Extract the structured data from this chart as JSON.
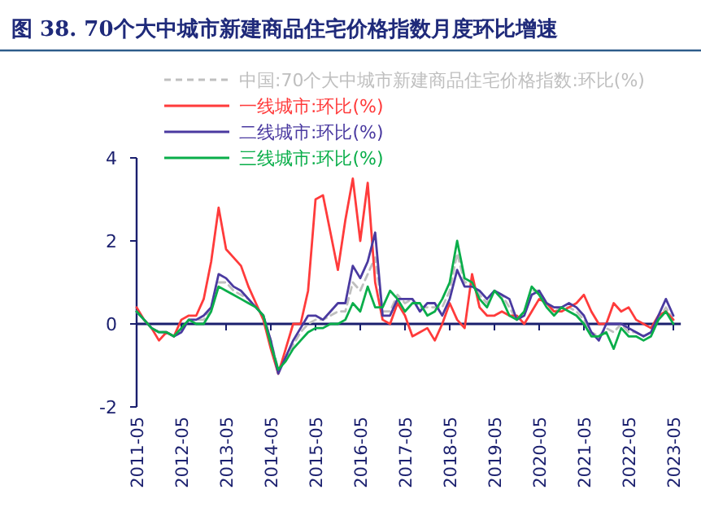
{
  "chart_data": {
    "type": "line",
    "title": "图  38. 70个大中城市新建商品住宅价格指数月度环比增速",
    "x": [
      "2011-05",
      "2011-07",
      "2011-09",
      "2011-11",
      "2012-01",
      "2012-03",
      "2012-05",
      "2012-07",
      "2012-09",
      "2012-11",
      "2013-01",
      "2013-03",
      "2013-05",
      "2013-07",
      "2013-09",
      "2013-11",
      "2014-01",
      "2014-03",
      "2014-05",
      "2014-07",
      "2014-09",
      "2014-11",
      "2015-01",
      "2015-03",
      "2015-05",
      "2015-07",
      "2015-09",
      "2015-11",
      "2016-01",
      "2016-03",
      "2016-05",
      "2016-07",
      "2016-09",
      "2016-11",
      "2017-01",
      "2017-03",
      "2017-05",
      "2017-07",
      "2017-09",
      "2017-11",
      "2018-01",
      "2018-03",
      "2018-05",
      "2018-07",
      "2018-09",
      "2018-11",
      "2019-01",
      "2019-03",
      "2019-05",
      "2019-07",
      "2019-09",
      "2019-11",
      "2020-01",
      "2020-03",
      "2020-05",
      "2020-07",
      "2020-09",
      "2020-11",
      "2021-01",
      "2021-03",
      "2021-05",
      "2021-07",
      "2021-09",
      "2021-11",
      "2022-01",
      "2022-03",
      "2022-05",
      "2022-07",
      "2022-09",
      "2022-11",
      "2023-01",
      "2023-03",
      "2023-05"
    ],
    "series": [
      {
        "name": "中国:70个大中城市新建商品住宅价格指数:环比(%)",
        "color": "#bfbfbf",
        "line_style": "dashed",
        "values": [
          0.3,
          0.1,
          -0.1,
          -0.2,
          -0.2,
          -0.3,
          -0.2,
          0.1,
          0.1,
          0.1,
          0.4,
          1.0,
          1.0,
          0.8,
          0.7,
          0.6,
          0.4,
          0.2,
          -0.4,
          -1.1,
          -0.8,
          -0.5,
          -0.2,
          0.0,
          0.1,
          0.1,
          0.2,
          0.3,
          0.3,
          1.0,
          0.8,
          1.2,
          1.6,
          0.3,
          0.3,
          0.7,
          0.5,
          0.6,
          0.4,
          0.4,
          0.4,
          0.4,
          0.8,
          1.7,
          1.0,
          1.0,
          0.7,
          0.5,
          0.8,
          0.7,
          0.4,
          0.1,
          0.3,
          0.8,
          0.8,
          0.5,
          0.3,
          0.4,
          0.4,
          0.3,
          0.1,
          -0.2,
          -0.3,
          -0.1,
          -0.2,
          0.0,
          -0.2,
          -0.2,
          -0.3,
          -0.2,
          0.1,
          0.4,
          0.1
        ]
      },
      {
        "name": "一线城市:环比(%)",
        "color": "#ff3b3b",
        "values": [
          0.4,
          0.1,
          -0.1,
          -0.4,
          -0.2,
          -0.3,
          0.1,
          0.2,
          0.2,
          0.6,
          1.5,
          2.8,
          1.8,
          1.6,
          1.4,
          0.9,
          0.5,
          0.1,
          -0.6,
          -1.2,
          -0.6,
          0.0,
          0.0,
          0.8,
          3.0,
          3.1,
          2.2,
          1.3,
          2.5,
          3.5,
          2.0,
          3.4,
          1.0,
          0.1,
          0.0,
          0.5,
          0.2,
          -0.3,
          -0.2,
          -0.1,
          -0.4,
          0.0,
          0.5,
          0.1,
          -0.1,
          1.2,
          0.4,
          0.2,
          0.2,
          0.3,
          0.2,
          0.2,
          0.0,
          0.3,
          0.6,
          0.5,
          0.3,
          0.3,
          0.4,
          0.5,
          0.7,
          0.3,
          0.0,
          0.0,
          0.5,
          0.3,
          0.4,
          0.1,
          0.0,
          -0.1,
          0.2,
          0.3,
          0.1
        ]
      },
      {
        "name": "二线城市:环比(%)",
        "color": "#4a3aa0",
        "values": [
          0.3,
          0.1,
          -0.1,
          -0.2,
          -0.2,
          -0.3,
          -0.2,
          0.1,
          0.1,
          0.2,
          0.4,
          1.2,
          1.1,
          0.9,
          0.8,
          0.6,
          0.4,
          0.2,
          -0.4,
          -1.2,
          -0.8,
          -0.4,
          -0.1,
          0.2,
          0.2,
          0.1,
          0.3,
          0.5,
          0.5,
          1.4,
          1.1,
          1.5,
          2.2,
          0.2,
          0.2,
          0.6,
          0.6,
          0.6,
          0.3,
          0.5,
          0.5,
          0.2,
          0.6,
          1.3,
          0.9,
          0.9,
          0.8,
          0.6,
          0.8,
          0.7,
          0.6,
          0.1,
          0.2,
          0.7,
          0.8,
          0.5,
          0.4,
          0.4,
          0.5,
          0.4,
          0.2,
          -0.2,
          -0.4,
          0.0,
          0.0,
          0.0,
          -0.1,
          -0.2,
          -0.3,
          -0.2,
          0.2,
          0.6,
          0.2
        ]
      },
      {
        "name": "三线城市:环比(%)",
        "color": "#0aae4a",
        "values": [
          0.3,
          0.1,
          -0.1,
          -0.2,
          -0.2,
          -0.3,
          -0.1,
          0.1,
          0.0,
          0.0,
          0.3,
          0.9,
          0.8,
          0.7,
          0.6,
          0.5,
          0.4,
          0.2,
          -0.5,
          -1.1,
          -0.9,
          -0.6,
          -0.4,
          -0.2,
          -0.1,
          -0.1,
          0.0,
          0.0,
          0.1,
          0.5,
          0.3,
          0.9,
          0.4,
          0.4,
          0.8,
          0.6,
          0.3,
          0.5,
          0.5,
          0.2,
          0.3,
          0.6,
          1.0,
          2.0,
          1.1,
          1.0,
          0.6,
          0.4,
          0.8,
          0.6,
          0.2,
          0.1,
          0.3,
          0.9,
          0.7,
          0.4,
          0.2,
          0.4,
          0.3,
          0.2,
          0.0,
          -0.3,
          -0.3,
          -0.2,
          -0.6,
          -0.1,
          -0.3,
          -0.3,
          -0.4,
          -0.3,
          0.1,
          0.3,
          0.0
        ]
      }
    ],
    "xlim": [
      "2011-05",
      "2023-07"
    ],
    "xticks": [
      "2011-05",
      "2012-05",
      "2013-05",
      "2014-05",
      "2015-05",
      "2016-05",
      "2017-05",
      "2018-05",
      "2019-05",
      "2020-05",
      "2021-05",
      "2022-05",
      "2023-05"
    ],
    "ylim": [
      -2,
      4
    ],
    "yticks": [
      -2,
      0,
      2,
      4
    ],
    "ref_lines": [
      {
        "axis": "y",
        "value": 0,
        "color": "#1a1f6e"
      }
    ],
    "grid": false,
    "legend": "top",
    "marker": "none"
  }
}
